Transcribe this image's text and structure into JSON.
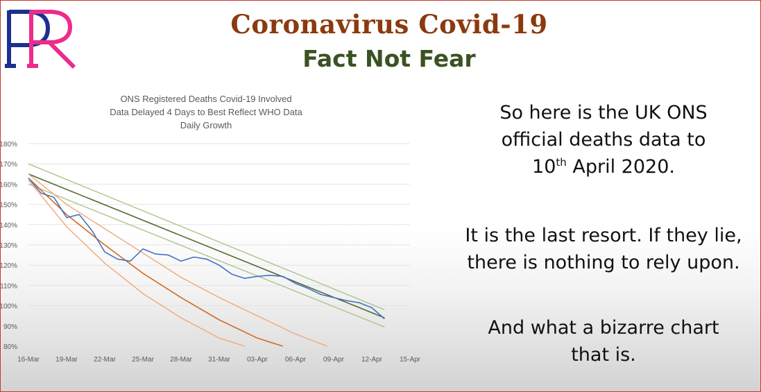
{
  "slide": {
    "headline": "Coronavirus Covid-19",
    "subhead": "Fact Not Fear",
    "logo_letters": "PR",
    "paragraph1": {
      "line1": "So here is the UK ONS",
      "line2": "official deaths data to",
      "date_day": "10",
      "date_suffix": "th",
      "date_rest": " April 2020."
    },
    "paragraph2": {
      "line1": "It is the last resort. If they lie,",
      "line2": "there is nothing to rely upon."
    },
    "paragraph3": {
      "line1": "And what a bizarre chart",
      "line2": "that is."
    }
  },
  "colors": {
    "headline": "#8b3a0f",
    "subhead": "#3b5223",
    "logo_blue": "#1d2f8f",
    "logo_pink": "#ec2c8c",
    "series_actual": "#4472c4",
    "series_trend_dark": "#4e6b2d",
    "series_trend_light": "#a9c58a",
    "series_orange_dark": "#d46a1e",
    "series_orange_light": "#f0a878"
  },
  "chart_data": {
    "type": "line",
    "title_lines": [
      "ONS Registered Deaths Covid-19 Involved",
      "Data Delayed 4 Days to Best Reflect WHO Data",
      "Daily Growth"
    ],
    "x_tick_labels": [
      "16-Mar",
      "19-Mar",
      "22-Mar",
      "25-Mar",
      "28-Mar",
      "31-Mar",
      "03-Apr",
      "06-Apr",
      "09-Apr",
      "12-Apr",
      "15-Apr"
    ],
    "x_range_days": [
      0,
      30
    ],
    "y_tick_labels": [
      "80%",
      "90%",
      "100%",
      "110%",
      "120%",
      "130%",
      "140%",
      "150%",
      "160%",
      "170%",
      "180%"
    ],
    "ylim": [
      80,
      180
    ],
    "grid": "horizontal",
    "legend": "none",
    "series": [
      {
        "style": "actual",
        "x": [
          0,
          1,
          2,
          3,
          4,
          5,
          6,
          7,
          8,
          9,
          10,
          11,
          12,
          13,
          14,
          15,
          16,
          17,
          18,
          19,
          20,
          21,
          22,
          23,
          24,
          25,
          26,
          27,
          28
        ],
        "y": [
          163,
          155.5,
          153.5,
          143.5,
          145,
          137,
          126.5,
          123,
          122,
          128,
          125.5,
          125,
          122,
          124,
          123,
          120,
          115.5,
          113.5,
          114.5,
          115,
          114.5,
          111,
          108.5,
          105.5,
          104,
          102.5,
          101.5,
          99,
          93.5
        ]
      },
      {
        "style": "trend_dark",
        "x": [
          0,
          28
        ],
        "y": [
          165,
          94
        ]
      },
      {
        "style": "trend_light",
        "x": [
          0,
          28
        ],
        "y": [
          170,
          98
        ]
      },
      {
        "style": "trend_light",
        "x": [
          0,
          28
        ],
        "y": [
          160,
          89.5
        ]
      },
      {
        "style": "orange_dark",
        "x": [
          0,
          3,
          6,
          9,
          12,
          15,
          18,
          20
        ],
        "y": [
          163,
          145,
          130,
          116,
          104,
          93,
          84,
          80
        ]
      },
      {
        "style": "orange_light",
        "x": [
          0,
          3,
          6,
          9,
          12,
          15,
          18,
          21,
          23.5
        ],
        "y": [
          165,
          150,
          138,
          126,
          114,
          104,
          95,
          86,
          80
        ]
      },
      {
        "style": "orange_light",
        "x": [
          0,
          3,
          6,
          9,
          12,
          15,
          17
        ],
        "y": [
          162,
          139,
          121,
          106,
          94,
          84,
          80
        ]
      }
    ]
  }
}
